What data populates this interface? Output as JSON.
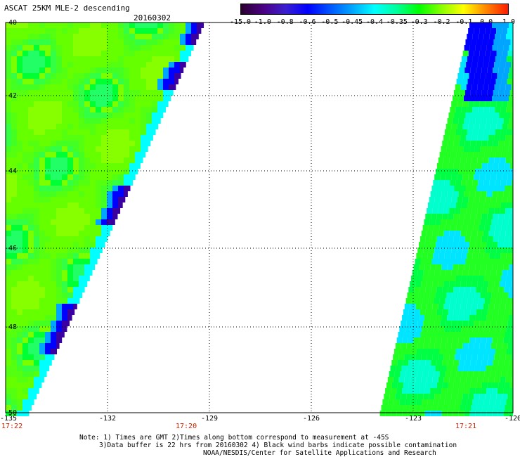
{
  "header": {
    "title": "ASCAT 25KM MLE-2 descending",
    "date": "20160302"
  },
  "colorbar": {
    "labels": [
      "-15.0",
      "-1.0",
      "-0.8",
      "-0.6",
      "-0.5",
      "-0.45",
      "-0.4",
      "-0.35",
      "-0.3",
      "-0.2",
      "-0.1",
      "0.0",
      "1.0"
    ],
    "colors": [
      "#2a0030",
      "#4b0082",
      "#3a1fd0",
      "#0000ff",
      "#0055ff",
      "#00a5ff",
      "#00ffff",
      "#00ff9a",
      "#00ff00",
      "#88ff00",
      "#ffff00",
      "#ff8800",
      "#ff1a00"
    ]
  },
  "map": {
    "lat_labels": [
      "-40",
      "-42",
      "-44",
      "-46",
      "-48",
      "-50"
    ],
    "lon_labels": [
      "-135",
      "-132",
      "-129",
      "-126",
      "-123",
      "-120"
    ],
    "time_labels": [
      "17:22",
      "17:20",
      "17:21"
    ]
  },
  "notes": [
    "Note: 1) Times are GMT 2)Times along bottom correspond to measurement at -45S",
    "3)Data buffer is 22 hrs from 20160302 4) Black wind barbs indicate possible contamination",
    "NOAA/NESDIS/Center for Satellite Applications and Research"
  ]
}
